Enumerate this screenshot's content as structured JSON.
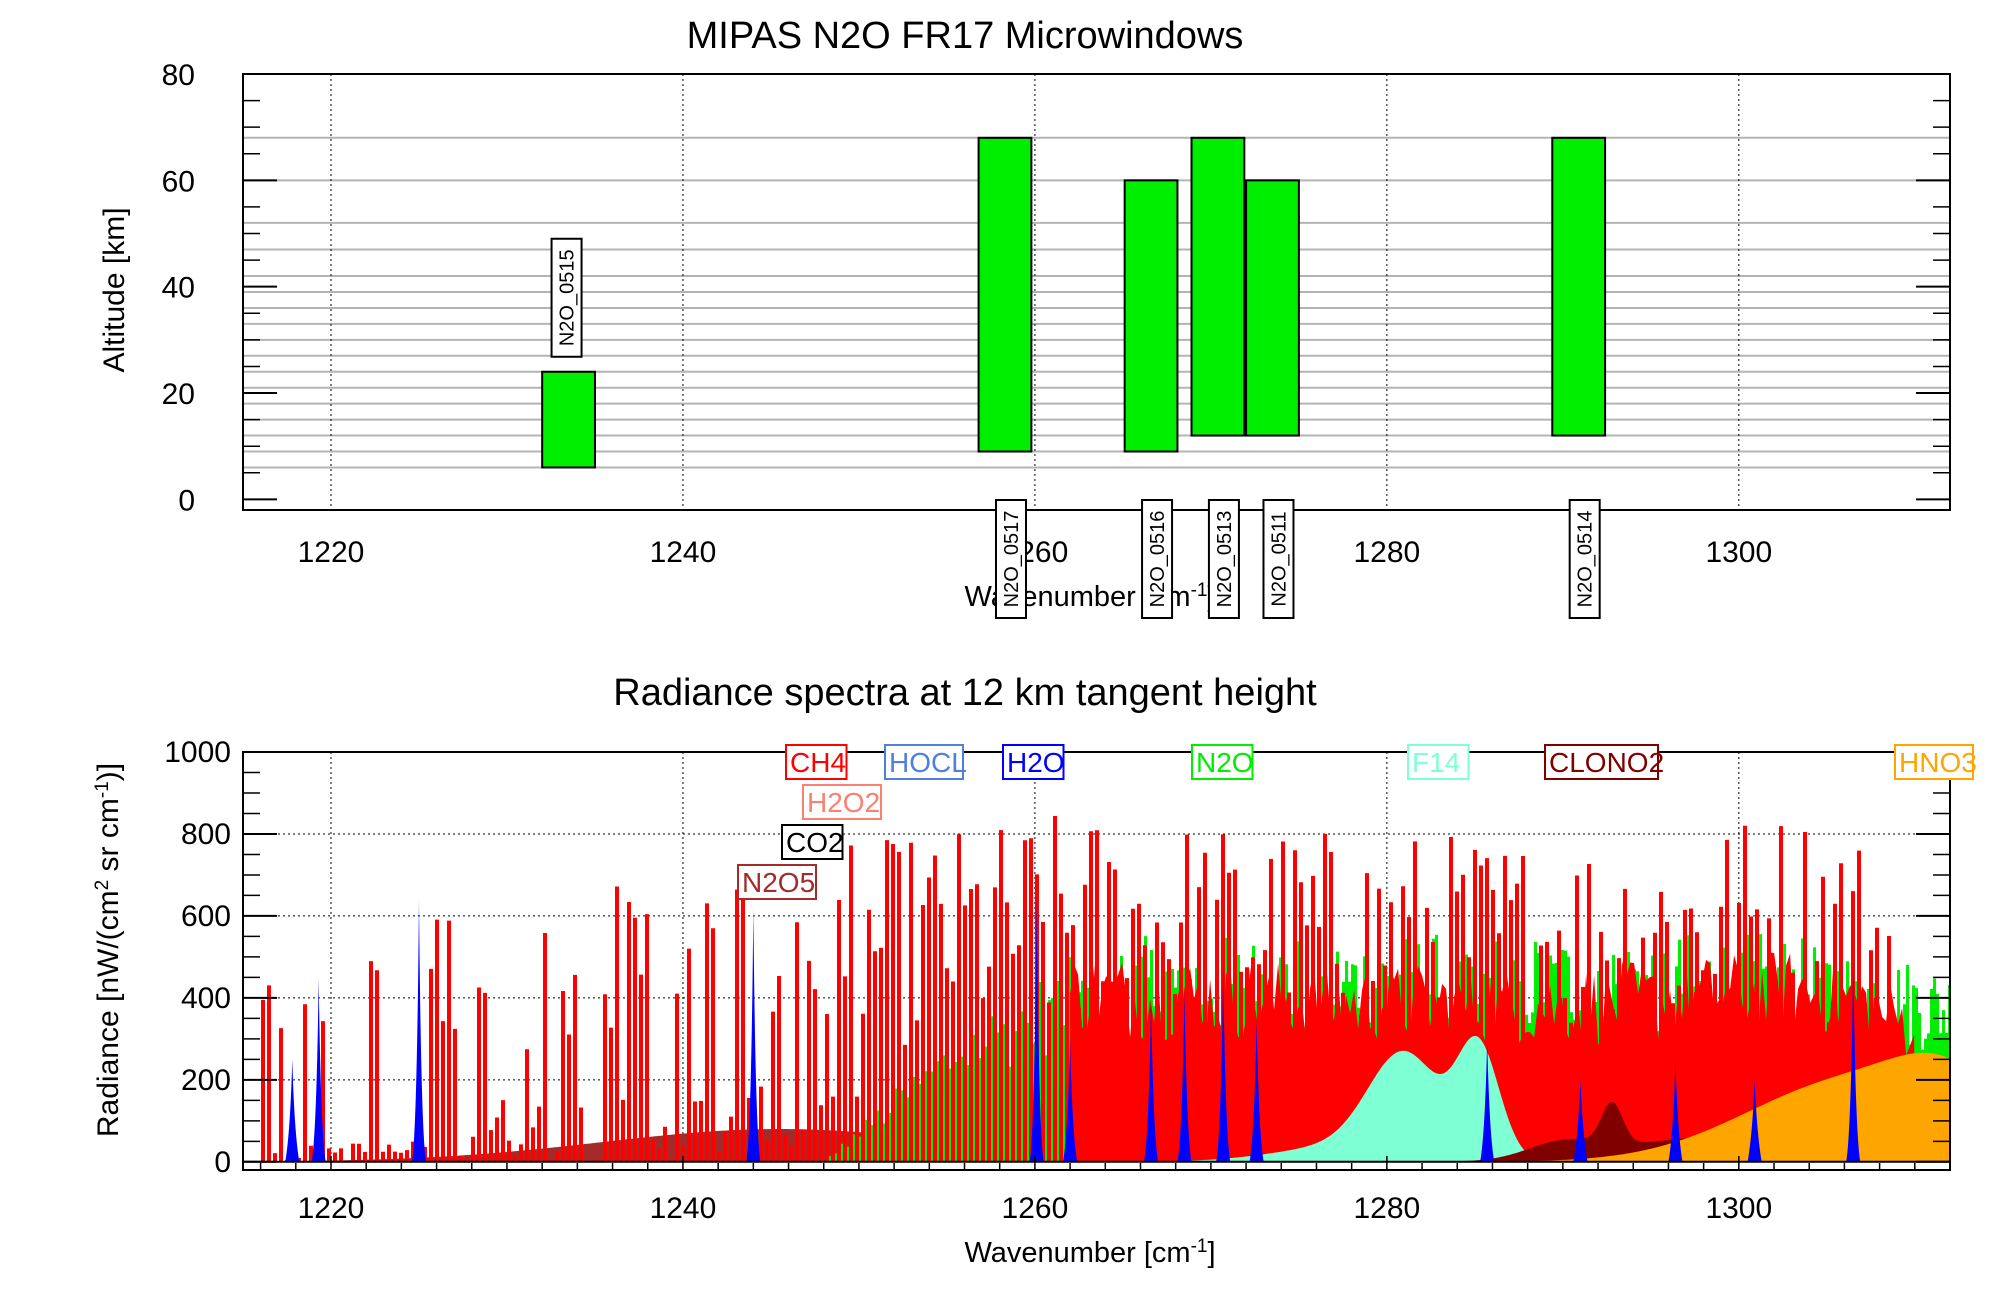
{
  "chart_data": [
    {
      "type": "bar",
      "title": "MIPAS N2O FR17 Microwindows",
      "xlabel": "Wavenumber [cm",
      "xlabel_sup": "-1",
      "xlabel_end": "]",
      "ylabel": "Altitude [km]",
      "xlim": [
        1215,
        1312
      ],
      "ylim": [
        -2,
        80
      ],
      "xticks": [
        1220,
        1240,
        1260,
        1280,
        1300
      ],
      "yticks": [
        0,
        20,
        40,
        60,
        80
      ],
      "tangent_altitudes": [
        6,
        9,
        12,
        15,
        18,
        21,
        24,
        27,
        30,
        33,
        36,
        39,
        42,
        47,
        52,
        60,
        68
      ],
      "bar_color": "#00ee00",
      "microwindows": [
        {
          "label": "N2O_0515",
          "x0": 1232.0,
          "x1": 1235.0,
          "alt0": 6,
          "alt1": 24,
          "label_side": "top"
        },
        {
          "label": "N2O_0517",
          "x0": 1256.8,
          "x1": 1259.8,
          "alt0": 9,
          "alt1": 68,
          "label_side": "bottom"
        },
        {
          "label": "N2O_0516",
          "x0": 1265.1,
          "x1": 1268.1,
          "alt0": 9,
          "alt1": 60,
          "label_side": "bottom"
        },
        {
          "label": "N2O_0513",
          "x0": 1268.9,
          "x1": 1271.9,
          "alt0": 12,
          "alt1": 68,
          "label_side": "bottom"
        },
        {
          "label": "N2O_0511",
          "x0": 1272.0,
          "x1": 1275.0,
          "alt0": 12,
          "alt1": 60,
          "label_side": "bottom"
        },
        {
          "label": "N2O_0514",
          "x0": 1289.4,
          "x1": 1292.4,
          "alt0": 12,
          "alt1": 68,
          "label_side": "bottom"
        }
      ]
    },
    {
      "type": "area",
      "title": "Radiance spectra at 12 km tangent height",
      "xlabel": "Wavenumber [cm",
      "xlabel_sup": "-1",
      "xlabel_end": "]",
      "ylabel": "Radiance [nW/(cm",
      "ylabel_sup1": "2",
      "ylabel_mid": " sr cm",
      "ylabel_sup2": "-1",
      "ylabel_end": ")]",
      "xlim": [
        1215,
        1312
      ],
      "ylim": [
        -20,
        1000
      ],
      "xticks": [
        1220,
        1240,
        1260,
        1280,
        1300
      ],
      "yticks": [
        0,
        200,
        400,
        600,
        800,
        1000
      ],
      "legend": [
        {
          "name": "CH4",
          "color": "#ff0000"
        },
        {
          "name": "HOCL",
          "color": "#4f7fdf"
        },
        {
          "name": "H2O",
          "color": "#0000ff"
        },
        {
          "name": "N2O",
          "color": "#00ee00"
        },
        {
          "name": "F14",
          "color": "#7fffd4"
        },
        {
          "name": "CLONO2",
          "color": "#800000"
        },
        {
          "name": "HNO3",
          "color": "#ffa500"
        },
        {
          "name": "H2O2",
          "color": "#fa8072"
        },
        {
          "name": "CO2",
          "color": "#000000"
        },
        {
          "name": "N2O5",
          "color": "#a52a2a"
        }
      ],
      "series": [
        {
          "name": "N2O5",
          "color": "#a52a2a",
          "peaks": [
            [
              1245.5,
              80,
              10
            ]
          ]
        },
        {
          "name": "F14",
          "color": "#7fffd4",
          "peaks": [
            [
              1281.0,
              240,
              2.0
            ],
            [
              1285.2,
              270,
              1.2
            ],
            [
              1278.0,
              40,
              4
            ]
          ]
        },
        {
          "name": "CLONO2",
          "color": "#800000",
          "peaks": [
            [
              1292.8,
              100,
              0.6
            ],
            [
              1290.0,
              40,
              2
            ],
            [
              1298.5,
              60,
              5
            ]
          ]
        },
        {
          "name": "HNO3",
          "color": "#ffa500",
          "peaks": [
            [
              1306.5,
              200,
              6
            ],
            [
              1312,
              120,
              3
            ]
          ]
        },
        {
          "name": "N2O",
          "color": "#00ee00",
          "envelope": [
            [
              1248,
              0
            ],
            [
              1256,
              350
            ],
            [
              1264,
              550
            ],
            [
              1280,
              560
            ],
            [
              1290,
              560
            ],
            [
              1302,
              560
            ],
            [
              1312,
              480
            ]
          ]
        },
        {
          "name": "CH4",
          "color": "#ff0000",
          "envelope": [
            [
              1215,
              620
            ],
            [
              1230,
              650
            ],
            [
              1240,
              700
            ],
            [
              1250,
              780
            ],
            [
              1262,
              860
            ],
            [
              1275,
              820
            ],
            [
              1290,
              800
            ],
            [
              1305,
              880
            ],
            [
              1310,
              700
            ]
          ]
        },
        {
          "name": "H2O",
          "color": "#0000ff",
          "lines": [
            [
              1217.8,
              250
            ],
            [
              1219.3,
              450
            ],
            [
              1225.0,
              640
            ],
            [
              1244.0,
              620
            ],
            [
              1260.1,
              650
            ],
            [
              1262.0,
              300
            ],
            [
              1266.6,
              400
            ],
            [
              1268.5,
              420
            ],
            [
              1270.7,
              480
            ],
            [
              1272.6,
              350
            ],
            [
              1285.7,
              300
            ],
            [
              1291.0,
              200
            ],
            [
              1296.4,
              250
            ],
            [
              1300.9,
              200
            ],
            [
              1306.5,
              500
            ]
          ]
        }
      ]
    }
  ]
}
